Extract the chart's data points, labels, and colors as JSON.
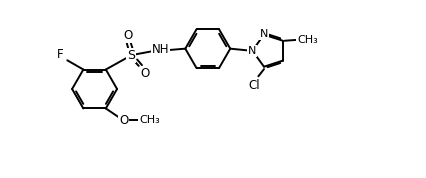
{
  "background_color": "#ffffff",
  "line_color": "#000000",
  "text_color": "#000000",
  "line_width": 1.4,
  "font_size": 8.5,
  "fig_width": 4.26,
  "fig_height": 1.78,
  "dpi": 100,
  "xlim": [
    0,
    10.5
  ],
  "ylim": [
    0,
    4.4
  ]
}
